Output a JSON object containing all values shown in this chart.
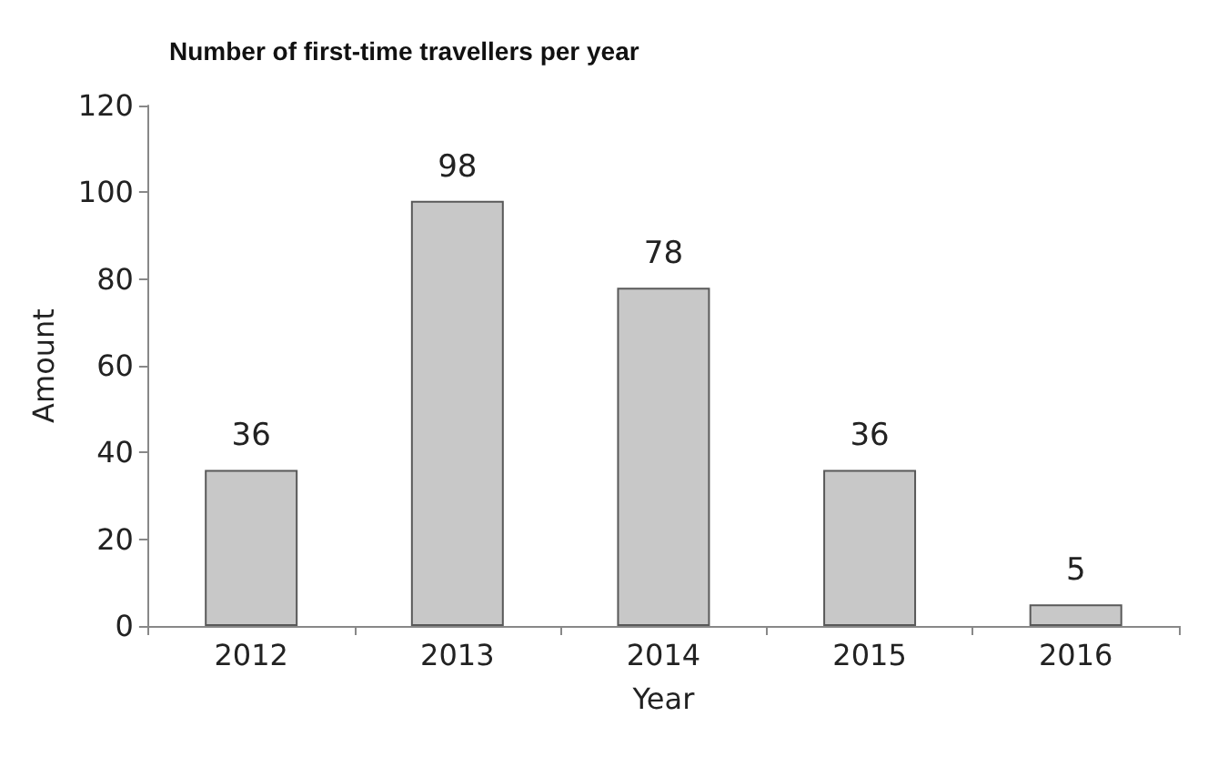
{
  "chart_data": {
    "type": "bar",
    "title": "Number of first-time travellers per year",
    "xlabel": "Year",
    "ylabel": "Amount",
    "categories": [
      "2012",
      "2013",
      "2014",
      "2015",
      "2016"
    ],
    "values": [
      36,
      98,
      78,
      36,
      5
    ],
    "color": "#c8c8c8",
    "ylim": [
      0,
      120
    ],
    "yticks": [
      0,
      20,
      40,
      60,
      80,
      100,
      120
    ],
    "grid": false,
    "data_labels": true
  }
}
